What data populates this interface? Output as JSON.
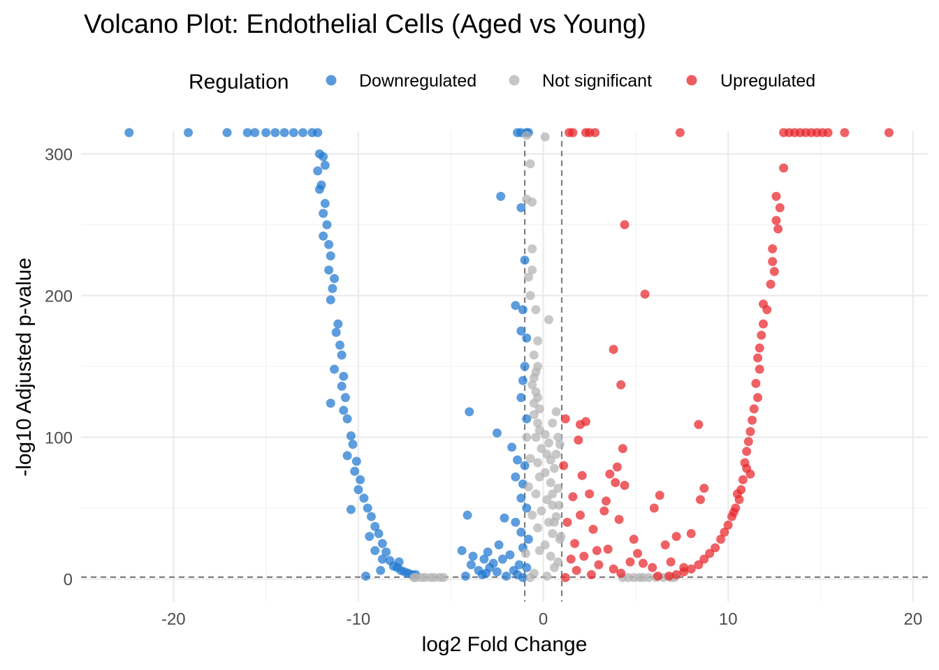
{
  "chart_data": {
    "type": "scatter",
    "title": "Volcano Plot: Endothelial Cells (Aged vs Young)",
    "xlabel": "log2 Fold Change",
    "ylabel": "-log10 Adjusted p-value",
    "xlim": [
      -25,
      20.8
    ],
    "ylim": [
      -16,
      316
    ],
    "x_ticks": [
      -20,
      -10,
      0,
      10,
      20
    ],
    "y_ticks": [
      0,
      100,
      200,
      300
    ],
    "x_tick_labels": [
      "-20",
      "-10",
      "0",
      "10",
      "20"
    ],
    "y_tick_labels": [
      "0",
      "100",
      "200",
      "300"
    ],
    "grid": true,
    "legend": {
      "title": "Regulation",
      "position": "top",
      "entries": [
        {
          "name": "Downregulated",
          "color": "#1f77d0"
        },
        {
          "name": "Not significant",
          "color": "#b3b3b3"
        },
        {
          "name": "Upregulated",
          "color": "#e8242a"
        }
      ]
    },
    "thresholds": {
      "log2fc": [
        -1,
        1
      ],
      "padj_line": 1.3
    },
    "series": [
      {
        "name": "Downregulated",
        "color": "#1f77d0",
        "points": [
          [
            -22.4,
            315
          ],
          [
            -19.2,
            315
          ],
          [
            -17.1,
            315
          ],
          [
            -16.0,
            315
          ],
          [
            -15.6,
            315
          ],
          [
            -15.0,
            315
          ],
          [
            -14.5,
            315
          ],
          [
            -14.0,
            315
          ],
          [
            -13.5,
            315
          ],
          [
            -13.0,
            315
          ],
          [
            -12.5,
            315
          ],
          [
            -12.2,
            315
          ],
          [
            -12.1,
            300
          ],
          [
            -11.9,
            298
          ],
          [
            -12.2,
            288
          ],
          [
            -11.8,
            292
          ],
          [
            -12.0,
            278
          ],
          [
            -12.1,
            275
          ],
          [
            -11.8,
            265
          ],
          [
            -11.9,
            258
          ],
          [
            -11.7,
            250
          ],
          [
            -11.9,
            242
          ],
          [
            -11.6,
            236
          ],
          [
            -11.5,
            228
          ],
          [
            -11.6,
            218
          ],
          [
            -11.3,
            212
          ],
          [
            -11.4,
            205
          ],
          [
            -11.5,
            197
          ],
          [
            -11.1,
            180
          ],
          [
            -11.2,
            174
          ],
          [
            -11.0,
            165
          ],
          [
            -10.9,
            158
          ],
          [
            -11.3,
            148
          ],
          [
            -10.8,
            143
          ],
          [
            -10.9,
            136
          ],
          [
            -10.7,
            128
          ],
          [
            -11.5,
            124
          ],
          [
            -10.8,
            119
          ],
          [
            -10.6,
            113
          ],
          [
            -10.4,
            101
          ],
          [
            -10.3,
            95
          ],
          [
            -10.6,
            87
          ],
          [
            -10.1,
            83
          ],
          [
            -10.2,
            76
          ],
          [
            -9.9,
            70
          ],
          [
            -10.0,
            63
          ],
          [
            -10.4,
            49
          ],
          [
            -9.7,
            57
          ],
          [
            -9.5,
            50
          ],
          [
            -9.3,
            44
          ],
          [
            -9.1,
            37
          ],
          [
            -9.4,
            30
          ],
          [
            -8.9,
            32
          ],
          [
            -8.7,
            25
          ],
          [
            -9.1,
            20
          ],
          [
            -8.5,
            19
          ],
          [
            -8.7,
            14
          ],
          [
            -8.3,
            13
          ],
          [
            -8.1,
            9
          ],
          [
            -7.9,
            8
          ],
          [
            -7.7,
            6
          ],
          [
            -7.5,
            5
          ],
          [
            -7.3,
            4
          ],
          [
            -7.1,
            3
          ],
          [
            -6.9,
            3
          ],
          [
            -7.8,
            12
          ],
          [
            -8.8,
            6
          ],
          [
            -9.6,
            2
          ],
          [
            -1.4,
            315
          ],
          [
            -1.2,
            315
          ],
          [
            -0.9,
            315
          ],
          [
            -0.8,
            315
          ],
          [
            -2.3,
            270
          ],
          [
            -1.2,
            262
          ],
          [
            -1.0,
            225
          ],
          [
            -1.5,
            193
          ],
          [
            -1.1,
            190
          ],
          [
            -1.2,
            175
          ],
          [
            -0.9,
            170
          ],
          [
            -1.0,
            150
          ],
          [
            -1.1,
            140
          ],
          [
            -1.2,
            128
          ],
          [
            -0.9,
            113
          ],
          [
            -1.7,
            93
          ],
          [
            -1.4,
            84
          ],
          [
            -1.0,
            80
          ],
          [
            -1.5,
            72
          ],
          [
            -1.1,
            67
          ],
          [
            -1.2,
            57
          ],
          [
            -0.9,
            50
          ],
          [
            -2.1,
            43
          ],
          [
            -1.5,
            40
          ],
          [
            -1.2,
            33
          ],
          [
            -0.8,
            28
          ],
          [
            -1.1,
            22
          ],
          [
            -1.8,
            17
          ],
          [
            -2.2,
            14
          ],
          [
            -1.3,
            10
          ],
          [
            -0.9,
            8
          ],
          [
            -1.6,
            6
          ],
          [
            -2.5,
            5
          ],
          [
            -3.1,
            4
          ],
          [
            -1.4,
            3
          ],
          [
            -2.0,
            2
          ],
          [
            -1.1,
            1
          ],
          [
            -4.0,
            118
          ],
          [
            -2.5,
            103
          ],
          [
            -4.1,
            45
          ],
          [
            -4.4,
            20
          ],
          [
            -3.8,
            16
          ],
          [
            -3.0,
            19
          ],
          [
            -2.7,
            11
          ],
          [
            -3.5,
            6
          ],
          [
            -4.2,
            2
          ],
          [
            -3.3,
            3
          ],
          [
            -2.9,
            8
          ],
          [
            -2.4,
            24
          ],
          [
            -3.9,
            10
          ],
          [
            -3.2,
            14
          ]
        ]
      },
      {
        "name": "Not significant",
        "color": "#b3b3b3",
        "points": [
          [
            -0.9,
            313
          ],
          [
            0.1,
            312
          ],
          [
            -0.7,
            293
          ],
          [
            -0.6,
            266
          ],
          [
            -0.9,
            268
          ],
          [
            -0.6,
            233
          ],
          [
            -0.6,
            218
          ],
          [
            -0.8,
            213
          ],
          [
            0.3,
            183
          ],
          [
            -0.7,
            200
          ],
          [
            -0.4,
            190
          ],
          [
            -0.3,
            168
          ],
          [
            -0.5,
            158
          ],
          [
            -0.3,
            150
          ],
          [
            -0.4,
            146
          ],
          [
            -0.5,
            142
          ],
          [
            -0.6,
            137
          ],
          [
            -0.4,
            132
          ],
          [
            -0.3,
            128
          ],
          [
            -0.5,
            124
          ],
          [
            -0.2,
            120
          ],
          [
            0.7,
            118
          ],
          [
            0.5,
            110
          ],
          [
            -0.5,
            116
          ],
          [
            -0.3,
            110
          ],
          [
            -0.2,
            105
          ],
          [
            0.1,
            102
          ],
          [
            -0.4,
            100
          ],
          [
            0.3,
            96
          ],
          [
            -0.1,
            92
          ],
          [
            0.2,
            88
          ],
          [
            0.4,
            84
          ],
          [
            -0.3,
            82
          ],
          [
            0.6,
            78
          ],
          [
            0.1,
            75
          ],
          [
            -0.2,
            72
          ],
          [
            0.4,
            68
          ],
          [
            0.8,
            64
          ],
          [
            -0.4,
            60
          ],
          [
            0.2,
            56
          ],
          [
            0.5,
            52
          ],
          [
            -0.1,
            48
          ],
          [
            0.7,
            44
          ],
          [
            0.3,
            40
          ],
          [
            -0.3,
            36
          ],
          [
            0.5,
            32
          ],
          [
            0.9,
            28
          ],
          [
            0.1,
            24
          ],
          [
            -0.2,
            20
          ],
          [
            0.4,
            16
          ],
          [
            0.8,
            12
          ],
          [
            0.6,
            8
          ],
          [
            -0.5,
            4
          ],
          [
            0.2,
            2
          ],
          [
            -0.7,
            1
          ],
          [
            0.7,
            88
          ],
          [
            0.8,
            100
          ],
          [
            0.9,
            95
          ],
          [
            0.5,
            60
          ],
          [
            0.6,
            40
          ],
          [
            -0.8,
            65
          ],
          [
            -0.6,
            45
          ],
          [
            -0.7,
            85
          ],
          [
            -0.9,
            100
          ],
          [
            0.95,
            30
          ],
          [
            -0.95,
            18
          ],
          [
            0.85,
            52
          ],
          [
            -6.6,
            1
          ],
          [
            -6.9,
            1
          ],
          [
            -7.0,
            1
          ],
          [
            -6.1,
            1
          ],
          [
            -5.6,
            1
          ],
          [
            -6.4,
            1
          ],
          [
            -5.4,
            1
          ],
          [
            -5.9,
            1
          ],
          [
            4.3,
            1
          ],
          [
            4.9,
            1
          ],
          [
            5.4,
            1
          ],
          [
            5.7,
            1
          ],
          [
            6.1,
            1
          ],
          [
            6.5,
            1
          ],
          [
            6.9,
            1
          ],
          [
            7.1,
            1
          ],
          [
            5.2,
            1
          ],
          [
            4.6,
            1
          ]
        ]
      },
      {
        "name": "Upregulated",
        "color": "#e8242a",
        "points": [
          [
            1.4,
            315
          ],
          [
            1.6,
            315
          ],
          [
            2.3,
            315
          ],
          [
            2.5,
            315
          ],
          [
            2.8,
            315
          ],
          [
            7.4,
            315
          ],
          [
            13.0,
            315
          ],
          [
            13.3,
            315
          ],
          [
            13.6,
            315
          ],
          [
            13.9,
            315
          ],
          [
            14.2,
            315
          ],
          [
            14.5,
            315
          ],
          [
            14.8,
            315
          ],
          [
            15.1,
            315
          ],
          [
            15.4,
            315
          ],
          [
            16.3,
            315
          ],
          [
            18.7,
            315
          ],
          [
            13.0,
            290
          ],
          [
            12.6,
            270
          ],
          [
            12.8,
            262
          ],
          [
            12.6,
            253
          ],
          [
            12.7,
            247
          ],
          [
            12.4,
            233
          ],
          [
            12.4,
            224
          ],
          [
            12.5,
            217
          ],
          [
            12.3,
            208
          ],
          [
            11.9,
            194
          ],
          [
            12.1,
            190
          ],
          [
            11.9,
            180
          ],
          [
            11.8,
            172
          ],
          [
            11.7,
            163
          ],
          [
            11.6,
            156
          ],
          [
            11.7,
            148
          ],
          [
            11.5,
            138
          ],
          [
            11.6,
            128
          ],
          [
            11.4,
            120
          ],
          [
            11.3,
            112
          ],
          [
            11.2,
            104
          ],
          [
            11.1,
            97
          ],
          [
            11.0,
            90
          ],
          [
            10.9,
            82
          ],
          [
            11.2,
            74
          ],
          [
            10.8,
            70
          ],
          [
            10.7,
            63
          ],
          [
            10.6,
            56
          ],
          [
            10.4,
            50
          ],
          [
            10.2,
            44
          ],
          [
            10.0,
            38
          ],
          [
            9.8,
            33
          ],
          [
            9.6,
            28
          ],
          [
            9.3,
            22
          ],
          [
            9.0,
            18
          ],
          [
            8.7,
            14
          ],
          [
            8.4,
            10
          ],
          [
            8.0,
            7
          ],
          [
            7.6,
            5
          ],
          [
            7.2,
            3
          ],
          [
            6.8,
            2
          ],
          [
            11.0,
            78
          ],
          [
            10.5,
            60
          ],
          [
            10.3,
            47
          ],
          [
            4.4,
            250
          ],
          [
            5.5,
            201
          ],
          [
            3.8,
            162
          ],
          [
            4.2,
            137
          ],
          [
            1.2,
            113
          ],
          [
            2.3,
            111
          ],
          [
            2.0,
            109
          ],
          [
            8.4,
            109
          ],
          [
            1.9,
            98
          ],
          [
            4.3,
            92
          ],
          [
            4.0,
            79
          ],
          [
            3.6,
            74
          ],
          [
            1.1,
            80
          ],
          [
            2.1,
            73
          ],
          [
            3.9,
            68
          ],
          [
            4.4,
            66
          ],
          [
            1.6,
            58
          ],
          [
            2.5,
            60
          ],
          [
            3.4,
            55
          ],
          [
            6.3,
            59
          ],
          [
            8.7,
            64
          ],
          [
            8.5,
            56
          ],
          [
            6.0,
            50
          ],
          [
            3.3,
            48
          ],
          [
            2.0,
            45
          ],
          [
            4.1,
            42
          ],
          [
            1.3,
            40
          ],
          [
            2.7,
            35
          ],
          [
            7.2,
            30
          ],
          [
            8.0,
            32
          ],
          [
            6.6,
            24
          ],
          [
            3.5,
            21
          ],
          [
            5.1,
            18
          ],
          [
            2.2,
            16
          ],
          [
            1.5,
            14
          ],
          [
            4.7,
            12
          ],
          [
            3.0,
            10
          ],
          [
            5.9,
            8
          ],
          [
            1.8,
            6
          ],
          [
            4.2,
            4
          ],
          [
            2.6,
            3
          ],
          [
            6.2,
            2
          ],
          [
            1.2,
            1
          ],
          [
            3.8,
            7
          ],
          [
            5.4,
            11
          ],
          [
            2.9,
            20
          ],
          [
            1.7,
            25
          ],
          [
            4.9,
            28
          ],
          [
            6.9,
            12
          ],
          [
            7.6,
            8
          ]
        ]
      }
    ]
  }
}
